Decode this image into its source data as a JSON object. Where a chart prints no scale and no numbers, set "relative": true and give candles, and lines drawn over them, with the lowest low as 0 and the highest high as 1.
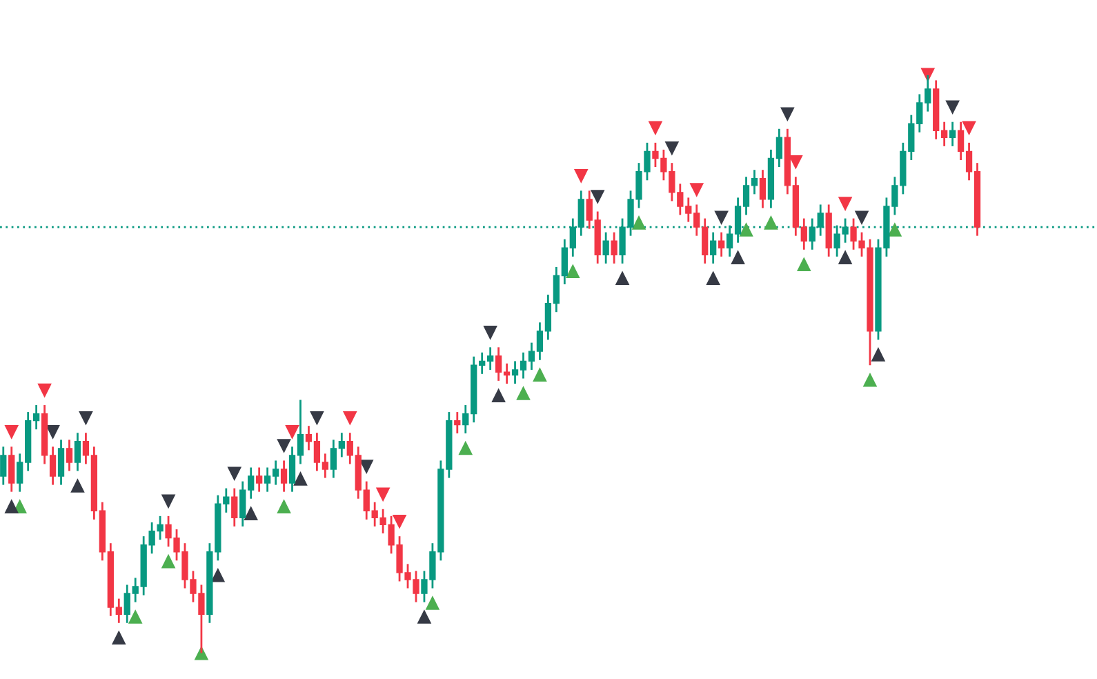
{
  "chart_data": {
    "type": "candlestick",
    "relative": true,
    "categories": [
      null,
      null,
      null,
      null,
      null,
      null,
      null,
      null,
      null,
      null,
      null,
      null,
      null,
      null,
      null,
      null,
      null,
      null,
      null,
      null,
      null,
      null,
      null,
      null,
      null,
      null,
      null,
      null,
      null,
      null,
      null,
      null,
      null,
      null,
      null,
      null,
      null,
      null,
      null,
      null,
      null,
      null,
      null,
      null,
      null,
      null,
      null,
      null,
      null,
      null,
      null,
      null,
      null,
      null,
      null,
      null,
      null,
      null,
      null,
      null,
      null,
      null,
      null,
      null,
      null,
      null,
      null,
      null,
      null,
      null,
      null,
      null,
      null,
      null,
      null,
      null,
      null,
      null,
      null,
      null,
      null,
      null,
      null,
      null,
      null,
      null,
      null,
      null,
      null,
      null,
      null,
      null,
      null,
      null,
      null,
      null,
      null,
      null,
      null,
      null,
      null,
      null,
      null,
      null,
      null,
      null,
      null,
      null,
      null,
      null,
      null,
      null,
      null,
      null,
      null,
      null,
      null,
      null,
      null
    ],
    "ohlc": [
      [
        0.306,
        0.357,
        0.291,
        0.342
      ],
      [
        0.342,
        0.357,
        0.279,
        0.294
      ],
      [
        0.294,
        0.345,
        0.279,
        0.33
      ],
      [
        0.33,
        0.417,
        0.315,
        0.402
      ],
      [
        0.402,
        0.429,
        0.387,
        0.414
      ],
      [
        0.414,
        0.429,
        0.327,
        0.342
      ],
      [
        0.342,
        0.357,
        0.291,
        0.306
      ],
      [
        0.306,
        0.369,
        0.291,
        0.354
      ],
      [
        0.354,
        0.369,
        0.315,
        0.33
      ],
      [
        0.33,
        0.381,
        0.315,
        0.366
      ],
      [
        0.366,
        0.381,
        0.327,
        0.342
      ],
      [
        0.342,
        0.357,
        0.231,
        0.246
      ],
      [
        0.246,
        0.261,
        0.16,
        0.175
      ],
      [
        0.175,
        0.19,
        0.064,
        0.079
      ],
      [
        0.079,
        0.094,
        0.052,
        0.067
      ],
      [
        0.067,
        0.118,
        0.052,
        0.103
      ],
      [
        0.103,
        0.13,
        0.088,
        0.115
      ],
      [
        0.115,
        0.202,
        0.1,
        0.187
      ],
      [
        0.187,
        0.226,
        0.172,
        0.211
      ],
      [
        0.211,
        0.237,
        0.196,
        0.222
      ],
      [
        0.222,
        0.237,
        0.184,
        0.199
      ],
      [
        0.199,
        0.214,
        0.16,
        0.175
      ],
      [
        0.175,
        0.19,
        0.112,
        0.127
      ],
      [
        0.127,
        0.142,
        0.088,
        0.103
      ],
      [
        0.103,
        0.118,
        0.0,
        0.067
      ],
      [
        0.067,
        0.19,
        0.052,
        0.175
      ],
      [
        0.175,
        0.273,
        0.16,
        0.258
      ],
      [
        0.258,
        0.285,
        0.243,
        0.27
      ],
      [
        0.27,
        0.285,
        0.219,
        0.234
      ],
      [
        0.234,
        0.297,
        0.219,
        0.282
      ],
      [
        0.282,
        0.321,
        0.267,
        0.306
      ],
      [
        0.306,
        0.321,
        0.279,
        0.294
      ],
      [
        0.294,
        0.321,
        0.279,
        0.306
      ],
      [
        0.306,
        0.333,
        0.291,
        0.318
      ],
      [
        0.318,
        0.333,
        0.279,
        0.294
      ],
      [
        0.294,
        0.357,
        0.279,
        0.342
      ],
      [
        0.342,
        0.438,
        0.327,
        0.378
      ],
      [
        0.378,
        0.393,
        0.351,
        0.366
      ],
      [
        0.366,
        0.381,
        0.315,
        0.33
      ],
      [
        0.33,
        0.345,
        0.303,
        0.318
      ],
      [
        0.318,
        0.369,
        0.303,
        0.354
      ],
      [
        0.354,
        0.381,
        0.339,
        0.366
      ],
      [
        0.366,
        0.381,
        0.327,
        0.342
      ],
      [
        0.342,
        0.357,
        0.267,
        0.282
      ],
      [
        0.282,
        0.297,
        0.231,
        0.246
      ],
      [
        0.246,
        0.261,
        0.219,
        0.234
      ],
      [
        0.234,
        0.249,
        0.207,
        0.222
      ],
      [
        0.222,
        0.237,
        0.172,
        0.187
      ],
      [
        0.187,
        0.202,
        0.124,
        0.139
      ],
      [
        0.139,
        0.154,
        0.112,
        0.127
      ],
      [
        0.127,
        0.142,
        0.088,
        0.103
      ],
      [
        0.103,
        0.142,
        0.088,
        0.127
      ],
      [
        0.127,
        0.19,
        0.112,
        0.175
      ],
      [
        0.175,
        0.333,
        0.16,
        0.318
      ],
      [
        0.318,
        0.417,
        0.303,
        0.402
      ],
      [
        0.402,
        0.417,
        0.38,
        0.395
      ],
      [
        0.395,
        0.429,
        0.38,
        0.414
      ],
      [
        0.414,
        0.513,
        0.399,
        0.498
      ],
      [
        0.498,
        0.52,
        0.483,
        0.505
      ],
      [
        0.505,
        0.529,
        0.49,
        0.514
      ],
      [
        0.514,
        0.529,
        0.471,
        0.486
      ],
      [
        0.486,
        0.501,
        0.466,
        0.481
      ],
      [
        0.481,
        0.505,
        0.466,
        0.49
      ],
      [
        0.49,
        0.52,
        0.475,
        0.505
      ],
      [
        0.505,
        0.537,
        0.49,
        0.522
      ],
      [
        0.522,
        0.572,
        0.507,
        0.557
      ],
      [
        0.557,
        0.62,
        0.542,
        0.605
      ],
      [
        0.605,
        0.668,
        0.59,
        0.653
      ],
      [
        0.653,
        0.716,
        0.638,
        0.701
      ],
      [
        0.701,
        0.752,
        0.686,
        0.737
      ],
      [
        0.737,
        0.8,
        0.722,
        0.785
      ],
      [
        0.785,
        0.8,
        0.734,
        0.749
      ],
      [
        0.749,
        0.764,
        0.674,
        0.689
      ],
      [
        0.689,
        0.728,
        0.674,
        0.713
      ],
      [
        0.713,
        0.728,
        0.674,
        0.689
      ],
      [
        0.689,
        0.752,
        0.674,
        0.737
      ],
      [
        0.737,
        0.8,
        0.722,
        0.785
      ],
      [
        0.785,
        0.848,
        0.77,
        0.833
      ],
      [
        0.833,
        0.883,
        0.818,
        0.868
      ],
      [
        0.868,
        0.883,
        0.841,
        0.856
      ],
      [
        0.856,
        0.871,
        0.818,
        0.833
      ],
      [
        0.833,
        0.848,
        0.782,
        0.797
      ],
      [
        0.797,
        0.812,
        0.758,
        0.773
      ],
      [
        0.773,
        0.788,
        0.746,
        0.761
      ],
      [
        0.761,
        0.776,
        0.722,
        0.737
      ],
      [
        0.737,
        0.752,
        0.674,
        0.689
      ],
      [
        0.689,
        0.728,
        0.674,
        0.713
      ],
      [
        0.713,
        0.728,
        0.686,
        0.701
      ],
      [
        0.701,
        0.74,
        0.686,
        0.725
      ],
      [
        0.725,
        0.788,
        0.71,
        0.773
      ],
      [
        0.773,
        0.824,
        0.758,
        0.809
      ],
      [
        0.809,
        0.836,
        0.794,
        0.821
      ],
      [
        0.821,
        0.836,
        0.77,
        0.785
      ],
      [
        0.785,
        0.871,
        0.77,
        0.856
      ],
      [
        0.856,
        0.907,
        0.841,
        0.892
      ],
      [
        0.892,
        0.907,
        0.794,
        0.809
      ],
      [
        0.809,
        0.824,
        0.722,
        0.737
      ],
      [
        0.737,
        0.752,
        0.698,
        0.713
      ],
      [
        0.713,
        0.752,
        0.698,
        0.737
      ],
      [
        0.737,
        0.776,
        0.722,
        0.761
      ],
      [
        0.761,
        0.776,
        0.686,
        0.701
      ],
      [
        0.701,
        0.74,
        0.686,
        0.725
      ],
      [
        0.725,
        0.752,
        0.71,
        0.737
      ],
      [
        0.737,
        0.752,
        0.698,
        0.713
      ],
      [
        0.713,
        0.728,
        0.686,
        0.701
      ],
      [
        0.701,
        0.716,
        0.498,
        0.557
      ],
      [
        0.557,
        0.716,
        0.542,
        0.701
      ],
      [
        0.701,
        0.788,
        0.686,
        0.773
      ],
      [
        0.773,
        0.824,
        0.758,
        0.809
      ],
      [
        0.809,
        0.883,
        0.794,
        0.868
      ],
      [
        0.868,
        0.931,
        0.853,
        0.916
      ],
      [
        0.916,
        0.967,
        0.901,
        0.952
      ],
      [
        0.952,
        1.0,
        0.937,
        0.976
      ],
      [
        0.976,
        0.991,
        0.889,
        0.904
      ],
      [
        0.904,
        0.919,
        0.877,
        0.892
      ],
      [
        0.892,
        0.919,
        0.877,
        0.904
      ],
      [
        0.904,
        0.919,
        0.853,
        0.868
      ],
      [
        0.868,
        0.883,
        0.818,
        0.833
      ],
      [
        0.833,
        0.848,
        0.722,
        0.737
      ]
    ],
    "series": [
      {
        "type": "scatter",
        "marker": "triangle_down",
        "color": "#f23645",
        "values": [
          null,
          0.382,
          null,
          null,
          null,
          0.454,
          null,
          null,
          null,
          null,
          null,
          null,
          null,
          null,
          null,
          null,
          null,
          null,
          null,
          null,
          null,
          null,
          null,
          null,
          null,
          null,
          null,
          null,
          null,
          null,
          null,
          null,
          null,
          null,
          null,
          0.382,
          null,
          null,
          null,
          null,
          null,
          null,
          0.406,
          null,
          null,
          null,
          0.274,
          null,
          0.227,
          null,
          null,
          null,
          null,
          null,
          null,
          null,
          null,
          null,
          null,
          null,
          null,
          null,
          null,
          null,
          null,
          null,
          null,
          null,
          null,
          null,
          0.825,
          null,
          null,
          null,
          null,
          null,
          null,
          null,
          null,
          0.908,
          null,
          null,
          null,
          null,
          0.801,
          null,
          null,
          null,
          null,
          null,
          null,
          null,
          null,
          null,
          null,
          null,
          0.849,
          null,
          null,
          null,
          null,
          null,
          0.777,
          null,
          null,
          null,
          null,
          null,
          null,
          null,
          null,
          null,
          1.0,
          null,
          null,
          null,
          null,
          0.908,
          null
        ]
      },
      {
        "type": "scatter",
        "marker": "triangle_down",
        "color": "#363a45",
        "values": [
          null,
          null,
          null,
          null,
          null,
          null,
          0.382,
          null,
          null,
          null,
          0.406,
          null,
          null,
          null,
          null,
          null,
          null,
          null,
          null,
          null,
          0.262,
          null,
          null,
          null,
          null,
          null,
          null,
          null,
          0.31,
          null,
          null,
          null,
          null,
          null,
          0.358,
          null,
          null,
          null,
          0.406,
          null,
          null,
          null,
          null,
          null,
          0.322,
          null,
          null,
          null,
          null,
          null,
          null,
          null,
          null,
          null,
          null,
          null,
          null,
          null,
          null,
          0.554,
          null,
          null,
          null,
          null,
          null,
          null,
          null,
          null,
          null,
          null,
          null,
          null,
          0.789,
          null,
          null,
          null,
          null,
          null,
          null,
          null,
          null,
          0.873,
          null,
          null,
          null,
          null,
          null,
          0.753,
          null,
          null,
          null,
          null,
          null,
          null,
          null,
          0.932,
          null,
          null,
          null,
          null,
          null,
          null,
          null,
          null,
          0.753,
          null,
          null,
          null,
          null,
          null,
          null,
          null,
          null,
          null,
          null,
          0.944,
          null,
          null,
          null
        ]
      },
      {
        "type": "scatter",
        "marker": "triangle",
        "color": "#4caf50",
        "values": [
          null,
          null,
          0.254,
          null,
          null,
          null,
          null,
          null,
          null,
          null,
          null,
          null,
          null,
          null,
          null,
          null,
          0.063,
          null,
          null,
          null,
          0.159,
          null,
          null,
          null,
          0.0,
          null,
          null,
          null,
          null,
          null,
          null,
          null,
          null,
          null,
          0.254,
          null,
          null,
          null,
          null,
          null,
          null,
          null,
          null,
          null,
          null,
          null,
          null,
          null,
          null,
          null,
          null,
          null,
          0.087,
          null,
          null,
          null,
          0.355,
          null,
          null,
          null,
          null,
          null,
          null,
          0.45,
          null,
          0.482,
          null,
          null,
          null,
          0.661,
          null,
          null,
          null,
          null,
          null,
          null,
          null,
          0.745,
          null,
          null,
          null,
          null,
          null,
          null,
          null,
          null,
          null,
          null,
          null,
          null,
          0.733,
          null,
          null,
          0.745,
          null,
          null,
          null,
          0.673,
          null,
          null,
          null,
          null,
          null,
          null,
          null,
          0.473,
          null,
          null,
          0.733,
          null,
          null,
          null,
          null,
          null,
          null,
          null,
          null,
          null,
          null
        ]
      },
      {
        "type": "scatter",
        "marker": "triangle",
        "color": "#363a45",
        "values": [
          null,
          0.254,
          null,
          null,
          null,
          null,
          null,
          null,
          null,
          0.29,
          null,
          null,
          null,
          null,
          0.027,
          null,
          null,
          null,
          null,
          null,
          null,
          null,
          null,
          null,
          null,
          null,
          0.135,
          null,
          null,
          null,
          0.242,
          null,
          null,
          null,
          null,
          null,
          0.302,
          null,
          null,
          null,
          null,
          null,
          null,
          null,
          null,
          null,
          null,
          null,
          null,
          null,
          null,
          0.063,
          null,
          null,
          null,
          null,
          null,
          null,
          null,
          null,
          0.446,
          null,
          null,
          null,
          null,
          null,
          null,
          null,
          null,
          null,
          null,
          null,
          null,
          null,
          null,
          0.649,
          null,
          null,
          null,
          null,
          null,
          null,
          null,
          null,
          null,
          null,
          0.649,
          null,
          null,
          0.685,
          null,
          null,
          null,
          null,
          null,
          null,
          null,
          null,
          null,
          null,
          null,
          null,
          0.685,
          null,
          null,
          null,
          0.517,
          null,
          null,
          null,
          null,
          null,
          null,
          null,
          null,
          null,
          null,
          null,
          null
        ]
      }
    ],
    "ref_lines": [
      {
        "axis": "y",
        "value": 0.737,
        "color": "#089981",
        "line_style": "dotted"
      }
    ]
  }
}
